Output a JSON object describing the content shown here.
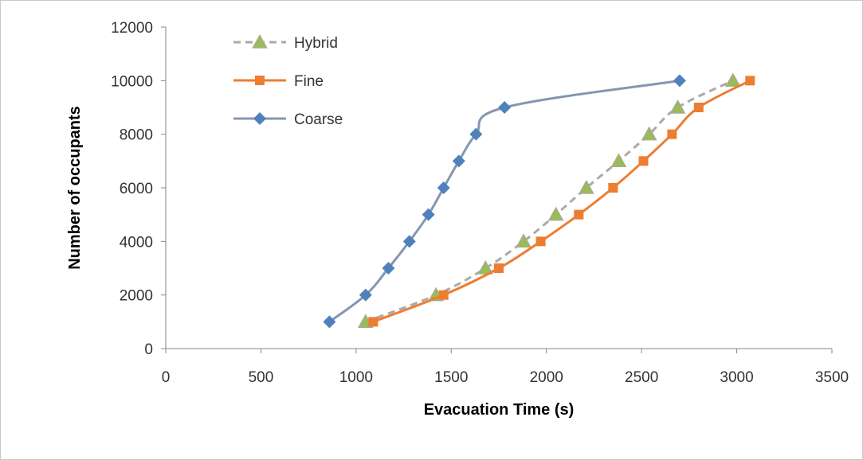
{
  "chart_data": {
    "type": "line",
    "xlabel": "Evacuation Time (s)",
    "ylabel": "Number of occupants",
    "xlim": [
      0,
      3500
    ],
    "ylim": [
      0,
      12000
    ],
    "x_ticks": [
      0,
      500,
      1000,
      1500,
      2000,
      2500,
      3000,
      3500
    ],
    "y_ticks": [
      0,
      2000,
      4000,
      6000,
      8000,
      10000,
      12000
    ],
    "grid": false,
    "legend_position": "top-left",
    "series": [
      {
        "name": "Hybrid",
        "color": "#aaaaaa",
        "marker": "triangle",
        "line_style": "dashed",
        "points": [
          [
            1050,
            1000
          ],
          [
            1420,
            2000
          ],
          [
            1680,
            3000
          ],
          [
            1880,
            4000
          ],
          [
            2050,
            5000
          ],
          [
            2210,
            6000
          ],
          [
            2380,
            7000
          ],
          [
            2540,
            8000
          ],
          [
            2690,
            9000
          ],
          [
            2980,
            10000
          ]
        ]
      },
      {
        "name": "Fine",
        "color": "#ed7d31",
        "marker": "square",
        "line_style": "solid",
        "points": [
          [
            1090,
            1000
          ],
          [
            1460,
            2000
          ],
          [
            1750,
            3000
          ],
          [
            1970,
            4000
          ],
          [
            2170,
            5000
          ],
          [
            2350,
            6000
          ],
          [
            2510,
            7000
          ],
          [
            2660,
            8000
          ],
          [
            2800,
            9000
          ],
          [
            3070,
            10000
          ]
        ]
      },
      {
        "name": "Coarse",
        "color": "#4f81bd",
        "line_color": "#8497b0",
        "marker": "diamond",
        "line_style": "solid",
        "points": [
          [
            860,
            1000
          ],
          [
            1050,
            2000
          ],
          [
            1170,
            3000
          ],
          [
            1280,
            4000
          ],
          [
            1380,
            5000
          ],
          [
            1460,
            6000
          ],
          [
            1540,
            7000
          ],
          [
            1630,
            8000
          ],
          [
            1780,
            9000
          ],
          [
            2700,
            10000
          ]
        ]
      }
    ]
  }
}
